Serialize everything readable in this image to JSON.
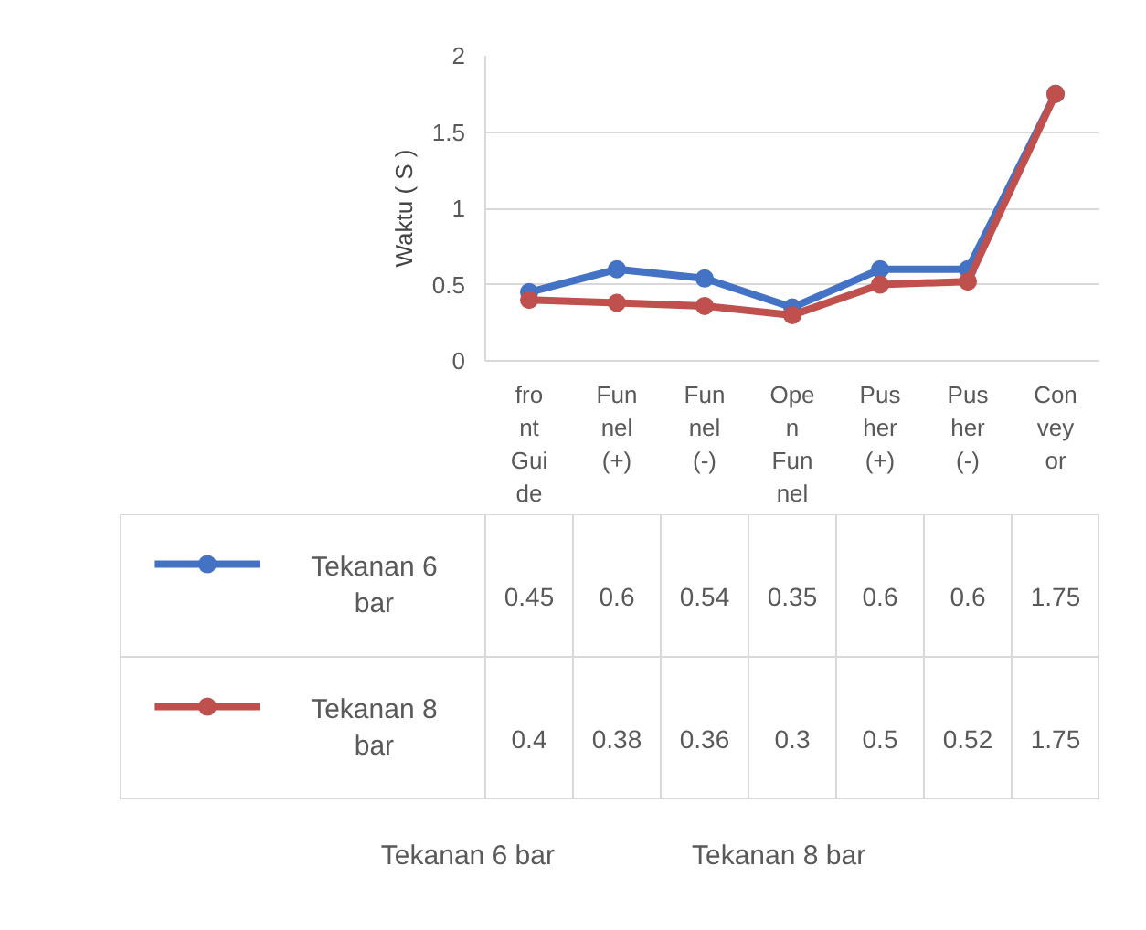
{
  "chart_data": {
    "type": "line",
    "ylabel": "Waktu ( S )",
    "categories": [
      "front Guide",
      "Funnel (+)",
      "Funnel (-)",
      "Open Funnel",
      "Pusher (+)",
      "Pusher (-)",
      "Conveyor"
    ],
    "series": [
      {
        "name": "Tekanan 6 bar",
        "color": "#4472c4",
        "values": [
          0.45,
          0.6,
          0.54,
          0.35,
          0.6,
          0.6,
          1.75
        ]
      },
      {
        "name": "Tekanan 8 bar",
        "color": "#c0504d",
        "values": [
          0.4,
          0.38,
          0.36,
          0.3,
          0.5,
          0.52,
          1.75
        ]
      }
    ],
    "ylim": [
      0,
      2
    ],
    "yticks": [
      0,
      0.5,
      1,
      1.5,
      2
    ],
    "grid": "y",
    "marker": "circle",
    "line_style": "solid",
    "data_labels": true,
    "legend": "bottom"
  }
}
